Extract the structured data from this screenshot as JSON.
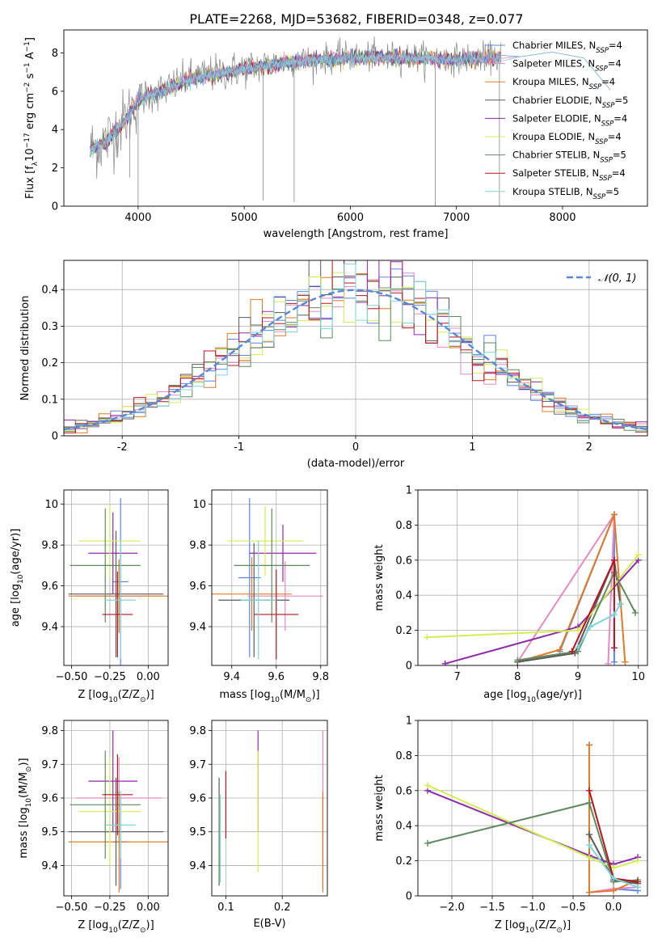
{
  "figure": {
    "title": "PLATE=2268, MJD=53682, FIBERID=0348, z=0.077"
  },
  "styles": {
    "colors": {
      "Chabrier MILES": "#5b87e8",
      "Salpeter MILES": "#e78ac3",
      "Kroupa MILES": "#e07b27",
      "Chabrier ELODIE": "#5a5a5a",
      "Salpeter ELODIE": "#8e2aa8",
      "Kroupa ELODIE": "#d4ed55",
      "Chabrier STELIB": "#5f8a5f",
      "Salpeter STELIB": "#b8141f",
      "Kroupa STELIB": "#7fd6d8",
      "gauss": "#5b87d8",
      "grid": "#b0b0b0"
    }
  },
  "chart_data": [
    {
      "id": "spectrum",
      "type": "line",
      "xlabel": "wavelength [Angstrom, rest frame]",
      "ylabel_parts": [
        "Flux [f",
        "λ",
        "10",
        "−17",
        " erg cm",
        "−2",
        " s",
        "−1",
        " A",
        "−1",
        "]"
      ],
      "xlim": [
        3300,
        8800
      ],
      "ylim": [
        0,
        9.2
      ],
      "xticks": [
        4000,
        5000,
        6000,
        7000,
        8000
      ],
      "yticks": [
        0,
        2,
        4,
        6,
        8
      ],
      "grid": false,
      "legend": "top-right",
      "data_color": "#888888",
      "continuum": {
        "x": [
          3550,
          3700,
          3900,
          4000,
          4300,
          4500,
          5000,
          5500,
          6000,
          6500,
          7000,
          7400
        ],
        "y": [
          3.0,
          3.4,
          4.7,
          5.6,
          6.2,
          6.7,
          7.2,
          7.6,
          7.8,
          7.8,
          7.7,
          7.8
        ]
      },
      "series": [
        {
          "label": "Chabrier MILES",
          "nssp": "4"
        },
        {
          "label": "Salpeter MILES",
          "nssp": "4"
        },
        {
          "label": "Kroupa MILES",
          "nssp": "4"
        },
        {
          "label": "Chabrier ELODIE",
          "nssp": "5"
        },
        {
          "label": "Salpeter ELODIE",
          "nssp": "4"
        },
        {
          "label": "Kroupa ELODIE",
          "nssp": "4"
        },
        {
          "label": "Chabrier STELIB",
          "nssp": "5"
        },
        {
          "label": "Salpeter STELIB",
          "nssp": "4"
        },
        {
          "label": "Kroupa STELIB",
          "nssp": "5"
        }
      ]
    },
    {
      "id": "residuals",
      "type": "step-histogram",
      "xlabel": "(data-model)/error",
      "ylabel": "Normed distribution",
      "xlim": [
        -2.5,
        2.5
      ],
      "ylim": [
        0,
        0.48
      ],
      "xticks": [
        -2,
        -1,
        0,
        1,
        2
      ],
      "yticks": [
        0.0,
        0.1,
        0.2,
        0.3,
        0.4
      ],
      "grid": true,
      "legend": "top-right",
      "legend_label": "𝒩(0, 1)",
      "bins": {
        "start": -2.5,
        "width": 0.1,
        "count": 50
      }
    },
    {
      "id": "age_vs_Z",
      "type": "errorbar",
      "xlabel_parts": [
        "Z [log",
        "10",
        "(Z/Z",
        "⊙",
        ")]"
      ],
      "ylabel_parts": [
        "age  [log",
        "10",
        "(age/yr)]"
      ],
      "xlim": [
        -0.55,
        0.13
      ],
      "ylim": [
        9.21,
        10.07
      ],
      "xticks": [
        -0.5,
        -0.25,
        0.0
      ],
      "xticklabels": [
        "−0.50",
        "−0.25",
        "0.00"
      ],
      "yticks": [
        9.4,
        9.6,
        9.8,
        10.0
      ],
      "grid": true,
      "points": [
        {
          "series": "Chabrier MILES",
          "x": -0.18,
          "xerr": 0.05,
          "y": 9.62,
          "yerr": 0.41
        },
        {
          "series": "Salpeter MILES",
          "x": -0.19,
          "xerr": 0.28,
          "y": 9.55,
          "yerr": 0.18
        },
        {
          "series": "Kroupa MILES",
          "x": -0.19,
          "xerr": 0.33,
          "y": 9.55,
          "yerr": 0.18
        },
        {
          "series": "Chabrier ELODIE",
          "x": -0.21,
          "xerr": 0.31,
          "y": 9.56,
          "yerr": 0.31
        },
        {
          "series": "Salpeter ELODIE",
          "x": -0.23,
          "xerr": 0.16,
          "y": 9.76,
          "yerr": 0.2
        },
        {
          "series": "Kroupa ELODIE",
          "x": -0.25,
          "xerr": 0.2,
          "y": 9.82,
          "yerr": 0.18
        },
        {
          "series": "Chabrier STELIB",
          "x": -0.28,
          "xerr": 0.23,
          "y": 9.7,
          "yerr": 0.28
        },
        {
          "series": "Salpeter STELIB",
          "x": -0.2,
          "xerr": 0.1,
          "y": 9.46,
          "yerr": 0.21
        },
        {
          "series": "Kroupa STELIB",
          "x": -0.18,
          "xerr": 0.1,
          "y": 9.53,
          "yerr": 0.29
        }
      ]
    },
    {
      "id": "age_vs_mass",
      "type": "errorbar",
      "xlabel_parts": [
        "mass [log",
        "10",
        "(M/M",
        "⊙",
        ")]"
      ],
      "xlim": [
        9.31,
        9.83
      ],
      "ylim": [
        9.21,
        10.07
      ],
      "xticks": [
        9.4,
        9.6,
        9.8
      ],
      "yticks": [
        9.4,
        9.6,
        9.8,
        10.0
      ],
      "grid": true,
      "points": [
        {
          "series": "Chabrier MILES",
          "x": 9.48,
          "xerr": 0.05,
          "y": 9.64,
          "yerr": 0.39
        },
        {
          "series": "Salpeter MILES",
          "x": 9.64,
          "xerr": 0.17,
          "y": 9.55,
          "yerr": 0.17
        },
        {
          "series": "Kroupa MILES",
          "x": 9.49,
          "xerr": 0.18,
          "y": 9.56,
          "yerr": 0.18
        },
        {
          "series": "Chabrier ELODIE",
          "x": 9.5,
          "xerr": 0.16,
          "y": 9.53,
          "yerr": 0.28
        },
        {
          "series": "Salpeter ELODIE",
          "x": 9.63,
          "xerr": 0.15,
          "y": 9.76,
          "yerr": 0.14
        },
        {
          "series": "Kroupa ELODIE",
          "x": 9.55,
          "xerr": 0.17,
          "y": 9.82,
          "yerr": 0.17
        },
        {
          "series": "Chabrier STELIB",
          "x": 9.58,
          "xerr": 0.17,
          "y": 9.7,
          "yerr": 0.28
        },
        {
          "series": "Salpeter STELIB",
          "x": 9.6,
          "xerr": 0.1,
          "y": 9.46,
          "yerr": 0.22
        },
        {
          "series": "Kroupa STELIB",
          "x": 9.52,
          "xerr": 0.08,
          "y": 9.53,
          "yerr": 0.29
        }
      ]
    },
    {
      "id": "weight_vs_age",
      "type": "line",
      "xlabel_parts": [
        "age  [log",
        "10",
        "(age/yr)]"
      ],
      "ylabel": "mass weight",
      "xlim": [
        6.35,
        10.15
      ],
      "ylim": [
        0,
        1.0
      ],
      "xticks": [
        7,
        8,
        9,
        10
      ],
      "yticks": [
        0.0,
        0.2,
        0.4,
        0.6,
        0.8,
        1.0
      ],
      "grid": true,
      "series": [
        {
          "name": "Chabrier MILES",
          "x": [
            8.7,
            9.6,
            9.6
          ],
          "y": [
            0.08,
            0.86,
            0.02
          ]
        },
        {
          "name": "Salpeter MILES",
          "x": [
            8.0,
            9.6,
            9.5
          ],
          "y": [
            0.02,
            0.86,
            0.01
          ]
        },
        {
          "name": "Kroupa MILES",
          "x": [
            8.0,
            8.7,
            9.6,
            9.78
          ],
          "y": [
            0.02,
            0.09,
            0.86,
            0.02
          ]
        },
        {
          "name": "Chabrier ELODIE",
          "x": [
            8.0,
            8.95,
            9.6,
            9.7
          ],
          "y": [
            0.02,
            0.07,
            0.6,
            0.35
          ]
        },
        {
          "name": "Salpeter ELODIE",
          "x": [
            6.8,
            9.0,
            10.0
          ],
          "y": [
            0.01,
            0.22,
            0.6
          ]
        },
        {
          "name": "Kroupa ELODIE",
          "x": [
            6.5,
            9.0,
            10.0
          ],
          "y": [
            0.16,
            0.2,
            0.63
          ]
        },
        {
          "name": "Chabrier STELIB",
          "x": [
            8.0,
            9.0,
            9.6,
            9.95
          ],
          "y": [
            0.03,
            0.08,
            0.53,
            0.3
          ]
        },
        {
          "name": "Salpeter STELIB",
          "x": [
            8.9,
            9.6,
            9.6
          ],
          "y": [
            0.08,
            0.6,
            0.1
          ]
        },
        {
          "name": "Kroupa STELIB",
          "x": [
            9.0,
            9.2,
            9.6,
            9.7
          ],
          "y": [
            0.1,
            0.22,
            0.29,
            0.35
          ]
        }
      ]
    },
    {
      "id": "mass_vs_Z",
      "type": "errorbar",
      "xlabel_parts": [
        "Z [log",
        "10",
        "(Z/Z",
        "⊙",
        ")]"
      ],
      "ylabel_parts": [
        "mass [log",
        "10",
        "(M/M",
        "⊙",
        ")]"
      ],
      "xlim": [
        -0.55,
        0.13
      ],
      "ylim": [
        9.31,
        9.83
      ],
      "xticks": [
        -0.5,
        -0.25,
        0.0
      ],
      "xticklabels": [
        "−0.50",
        "−0.25",
        "0.00"
      ],
      "yticks": [
        9.4,
        9.5,
        9.6,
        9.7,
        9.8
      ],
      "grid": true,
      "points": [
        {
          "series": "Chabrier MILES",
          "x": -0.18,
          "xerr": 0.05,
          "y": 9.47,
          "yerr": 0.14
        },
        {
          "series": "Salpeter MILES",
          "x": -0.19,
          "xerr": 0.28,
          "y": 9.6,
          "yerr": 0.12
        },
        {
          "series": "Kroupa MILES",
          "x": -0.19,
          "xerr": 0.33,
          "y": 9.47,
          "yerr": 0.15
        },
        {
          "series": "Chabrier ELODIE",
          "x": -0.21,
          "xerr": 0.31,
          "y": 9.5,
          "yerr": 0.16
        },
        {
          "series": "Salpeter ELODIE",
          "x": -0.23,
          "xerr": 0.16,
          "y": 9.65,
          "yerr": 0.15
        },
        {
          "series": "Kroupa ELODIE",
          "x": -0.25,
          "xerr": 0.2,
          "y": 9.56,
          "yerr": 0.16
        },
        {
          "series": "Chabrier STELIB",
          "x": -0.28,
          "xerr": 0.23,
          "y": 9.58,
          "yerr": 0.16
        },
        {
          "series": "Salpeter STELIB",
          "x": -0.2,
          "xerr": 0.1,
          "y": 9.61,
          "yerr": 0.12
        },
        {
          "series": "Kroupa STELIB",
          "x": -0.18,
          "xerr": 0.1,
          "y": 9.52,
          "yerr": 0.1
        }
      ]
    },
    {
      "id": "mass_vs_ebv",
      "type": "errorbar",
      "xlabel": "E(B-V)",
      "xlim": [
        0.075,
        0.28
      ],
      "ylim": [
        9.31,
        9.83
      ],
      "xticks": [
        0.1,
        0.2
      ],
      "yticks": [
        9.4,
        9.5,
        9.6,
        9.7,
        9.8
      ],
      "grid": true,
      "points": [
        {
          "series": "Chabrier MILES",
          "x": 0.272,
          "xerr": 0,
          "y": 9.47,
          "yerr": 0.14
        },
        {
          "series": "Salpeter MILES",
          "x": 0.272,
          "xerr": 0,
          "y": 9.6,
          "yerr": 0.2
        },
        {
          "series": "Kroupa MILES",
          "x": 0.272,
          "xerr": 0,
          "y": 9.47,
          "yerr": 0.15
        },
        {
          "series": "Chabrier ELODIE",
          "x": 0.088,
          "xerr": 0,
          "y": 9.5,
          "yerr": 0.16
        },
        {
          "series": "Salpeter ELODIE",
          "x": 0.157,
          "xerr": 0,
          "y": 9.65,
          "yerr": 0.15
        },
        {
          "series": "Kroupa ELODIE",
          "x": 0.157,
          "xerr": 0,
          "y": 9.56,
          "yerr": 0.18
        },
        {
          "series": "Chabrier STELIB",
          "x": 0.088,
          "xerr": 0,
          "y": 9.48,
          "yerr": 0.13
        },
        {
          "series": "Salpeter STELIB",
          "x": 0.1,
          "xerr": 0,
          "y": 9.58,
          "yerr": 0.1
        },
        {
          "series": "Kroupa STELIB",
          "x": 0.09,
          "xerr": 0,
          "y": 9.48,
          "yerr": 0.13
        }
      ]
    },
    {
      "id": "weight_vs_Z",
      "type": "line",
      "xlabel_parts": [
        "Z [log",
        "10",
        "(Z/Z",
        "⊙",
        ")]"
      ],
      "ylabel": "mass weight",
      "xlim": [
        -2.42,
        0.42
      ],
      "ylim": [
        0,
        1.0
      ],
      "xticks": [
        -2.0,
        -1.5,
        -1.0,
        -0.5,
        0.0
      ],
      "xticklabels": [
        "−2.0",
        "−1.5",
        "−1.0",
        "−0.5",
        "0.0"
      ],
      "yticks": [
        0.0,
        0.2,
        0.4,
        0.6,
        0.8,
        1.0
      ],
      "grid": true,
      "series": [
        {
          "name": "Chabrier MILES",
          "x": [
            -0.3,
            -0.3,
            0.0,
            0.3
          ],
          "y": [
            0.86,
            0.02,
            0.04,
            0.03
          ]
        },
        {
          "name": "Salpeter MILES",
          "x": [
            -0.3,
            -0.3,
            0.0,
            0.3
          ],
          "y": [
            0.86,
            0.02,
            0.04,
            0.05
          ]
        },
        {
          "name": "Kroupa MILES",
          "x": [
            -0.3,
            -0.3,
            0.0,
            0.3
          ],
          "y": [
            0.86,
            0.02,
            0.03,
            0.09
          ]
        },
        {
          "name": "Chabrier ELODIE",
          "x": [
            -0.3,
            0.0,
            0.3
          ],
          "y": [
            0.35,
            0.09,
            0.07
          ]
        },
        {
          "name": "Salpeter ELODIE",
          "x": [
            -2.3,
            -0.3,
            0.0,
            0.3
          ],
          "y": [
            0.6,
            0.23,
            0.18,
            0.22
          ]
        },
        {
          "name": "Kroupa ELODIE",
          "x": [
            -2.3,
            -0.3,
            0.0,
            0.3
          ],
          "y": [
            0.63,
            0.22,
            0.16,
            0.2
          ]
        },
        {
          "name": "Chabrier STELIB",
          "x": [
            -2.3,
            -0.3,
            0.0,
            0.3
          ],
          "y": [
            0.3,
            0.53,
            0.08,
            0.09
          ]
        },
        {
          "name": "Salpeter STELIB",
          "x": [
            -0.3,
            0.0,
            0.3
          ],
          "y": [
            0.6,
            0.1,
            0.08
          ]
        },
        {
          "name": "Kroupa STELIB",
          "x": [
            -0.3,
            0.0,
            0.3
          ],
          "y": [
            0.29,
            0.1,
            0.05
          ]
        }
      ]
    }
  ]
}
